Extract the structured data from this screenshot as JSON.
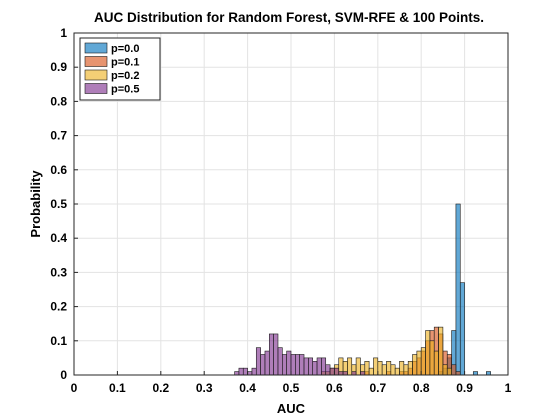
{
  "chart_data": {
    "type": "bar",
    "title": "AUC Distribution for Random Forest, SVM-RFE & 100 Points.",
    "xlabel": "AUC",
    "ylabel": "Probability",
    "xlim": [
      0,
      1
    ],
    "ylim": [
      0,
      1
    ],
    "xticks": [
      "0",
      "0.1",
      "0.2",
      "0.3",
      "0.4",
      "0.5",
      "0.6",
      "0.7",
      "0.8",
      "0.9",
      "1"
    ],
    "yticks": [
      "0",
      "0.1",
      "0.2",
      "0.3",
      "0.4",
      "0.5",
      "0.6",
      "0.7",
      "0.8",
      "0.9",
      "1"
    ],
    "grid": true,
    "legend_position": "top-left",
    "bin_width": 0.01,
    "series": [
      {
        "name": "p=0.0",
        "color": "#0072BD",
        "bins": [
          [
            0.84,
            0.01
          ],
          [
            0.85,
            0.02
          ],
          [
            0.86,
            0.05
          ],
          [
            0.87,
            0.13
          ],
          [
            0.88,
            0.5
          ],
          [
            0.89,
            0.27
          ],
          [
            0.92,
            0.01
          ],
          [
            0.95,
            0.01
          ]
        ]
      },
      {
        "name": "p=0.1",
        "color": "#D95319",
        "bins": [
          [
            0.67,
            0.01
          ],
          [
            0.72,
            0.01
          ],
          [
            0.75,
            0.01
          ],
          [
            0.76,
            0.01
          ],
          [
            0.77,
            0.02
          ],
          [
            0.78,
            0.04
          ],
          [
            0.79,
            0.05
          ],
          [
            0.8,
            0.07
          ],
          [
            0.81,
            0.1
          ],
          [
            0.82,
            0.13
          ],
          [
            0.83,
            0.14
          ],
          [
            0.84,
            0.12
          ],
          [
            0.85,
            0.07
          ],
          [
            0.86,
            0.06
          ],
          [
            0.87,
            0.03
          ],
          [
            0.88,
            0.01
          ]
        ]
      },
      {
        "name": "p=0.2",
        "color": "#EDB120",
        "bins": [
          [
            0.57,
            0.01
          ],
          [
            0.58,
            0.01
          ],
          [
            0.59,
            0.02
          ],
          [
            0.6,
            0.03
          ],
          [
            0.61,
            0.05
          ],
          [
            0.62,
            0.04
          ],
          [
            0.63,
            0.05
          ],
          [
            0.64,
            0.03
          ],
          [
            0.65,
            0.05
          ],
          [
            0.66,
            0.03
          ],
          [
            0.67,
            0.04
          ],
          [
            0.68,
            0.02
          ],
          [
            0.69,
            0.05
          ],
          [
            0.7,
            0.04
          ],
          [
            0.71,
            0.03
          ],
          [
            0.72,
            0.04
          ],
          [
            0.73,
            0.03
          ],
          [
            0.74,
            0.02
          ],
          [
            0.75,
            0.04
          ],
          [
            0.76,
            0.03
          ],
          [
            0.77,
            0.04
          ],
          [
            0.78,
            0.06
          ],
          [
            0.79,
            0.07
          ],
          [
            0.8,
            0.08
          ],
          [
            0.81,
            0.13
          ],
          [
            0.82,
            0.1
          ],
          [
            0.83,
            0.07
          ],
          [
            0.84,
            0.14
          ],
          [
            0.85,
            0.03
          ],
          [
            0.86,
            0.02
          ]
        ]
      },
      {
        "name": "p=0.5",
        "color": "#7E2F8E",
        "bins": [
          [
            0.37,
            0.01
          ],
          [
            0.38,
            0.02
          ],
          [
            0.39,
            0.02
          ],
          [
            0.4,
            0.01
          ],
          [
            0.41,
            0.02
          ],
          [
            0.42,
            0.08
          ],
          [
            0.43,
            0.06
          ],
          [
            0.44,
            0.07
          ],
          [
            0.45,
            0.12
          ],
          [
            0.46,
            0.12
          ],
          [
            0.47,
            0.08
          ],
          [
            0.48,
            0.06
          ],
          [
            0.49,
            0.07
          ],
          [
            0.5,
            0.06
          ],
          [
            0.51,
            0.06
          ],
          [
            0.52,
            0.06
          ],
          [
            0.53,
            0.05
          ],
          [
            0.54,
            0.05
          ],
          [
            0.55,
            0.04
          ],
          [
            0.56,
            0.05
          ],
          [
            0.57,
            0.05
          ],
          [
            0.58,
            0.03
          ],
          [
            0.59,
            0.02
          ],
          [
            0.6,
            0.02
          ],
          [
            0.61,
            0.01
          ],
          [
            0.62,
            0.01
          ],
          [
            0.64,
            0.01
          ],
          [
            0.66,
            0.01
          ]
        ]
      }
    ]
  }
}
